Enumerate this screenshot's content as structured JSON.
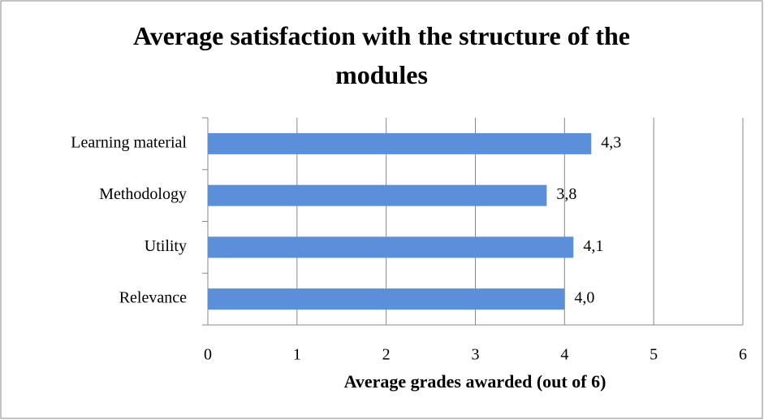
{
  "chart_data": {
    "type": "hbar",
    "title": "Average satisfaction with the structure of the modules",
    "xlabel": "Average grades awarded (out of 6)",
    "categories": [
      "Learning material",
      "Methodology",
      "Utility",
      "Relevance"
    ],
    "values": [
      4.3,
      3.8,
      4.1,
      4.0
    ],
    "value_labels": [
      "4,3",
      "3,8",
      "4,1",
      "4,0"
    ],
    "color": "#5b8fd9",
    "xlim": [
      0,
      6
    ],
    "xticks": [
      0,
      1,
      2,
      3,
      4,
      5,
      6
    ],
    "grid": true
  }
}
